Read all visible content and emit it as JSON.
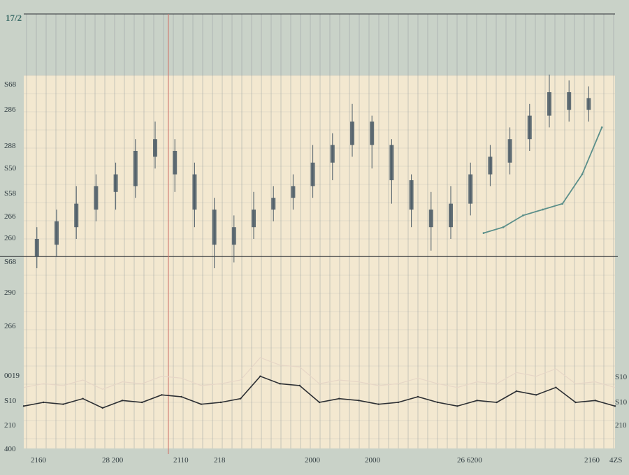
{
  "header": {
    "corner_label": "17/2"
  },
  "palette": {
    "background": "#c9d2c8",
    "panel": "#f3e8d0",
    "grid": "#8f999b",
    "candle": "#4a5a66",
    "price_line": "#2c2f33",
    "accent_line": "#5b8f8a",
    "marker_line": "#d0776f",
    "faint_line": "#e6d6c6"
  },
  "chart_data": {
    "type": "line",
    "title": "",
    "xlabel": "",
    "ylabel": "",
    "grid": true,
    "legend": "none",
    "ylim": [
      0,
      100
    ],
    "left_ticks": [
      "S68",
      "286",
      "288",
      "S50",
      "S58",
      "266",
      "260",
      "S68",
      "290",
      "266",
      "",
      "0019",
      "S10",
      "210",
      "400"
    ],
    "right_ticks": [
      "S10",
      "S10",
      "210"
    ],
    "x_ticks": [
      "2160",
      "28 200",
      "2110",
      "218",
      "2000",
      "2000",
      "26 6200",
      "2160",
      "4ZS"
    ],
    "candles": [
      {
        "x": 2,
        "o": 34,
        "c": 40,
        "h": 44,
        "l": 30
      },
      {
        "x": 5,
        "o": 38,
        "c": 46,
        "h": 50,
        "l": 34
      },
      {
        "x": 8,
        "o": 44,
        "c": 52,
        "h": 58,
        "l": 40
      },
      {
        "x": 11,
        "o": 50,
        "c": 58,
        "h": 62,
        "l": 46
      },
      {
        "x": 14,
        "o": 56,
        "c": 62,
        "h": 66,
        "l": 50
      },
      {
        "x": 17,
        "o": 58,
        "c": 70,
        "h": 74,
        "l": 54
      },
      {
        "x": 20,
        "o": 68,
        "c": 74,
        "h": 80,
        "l": 64
      },
      {
        "x": 23,
        "o": 70,
        "c": 62,
        "h": 74,
        "l": 56
      },
      {
        "x": 26,
        "o": 62,
        "c": 50,
        "h": 66,
        "l": 44
      },
      {
        "x": 29,
        "o": 50,
        "c": 38,
        "h": 54,
        "l": 30
      },
      {
        "x": 32,
        "o": 38,
        "c": 44,
        "h": 48,
        "l": 32
      },
      {
        "x": 35,
        "o": 44,
        "c": 50,
        "h": 56,
        "l": 40
      },
      {
        "x": 38,
        "o": 50,
        "c": 54,
        "h": 58,
        "l": 46
      },
      {
        "x": 41,
        "o": 54,
        "c": 58,
        "h": 62,
        "l": 50
      },
      {
        "x": 44,
        "o": 58,
        "c": 66,
        "h": 72,
        "l": 54
      },
      {
        "x": 47,
        "o": 66,
        "c": 72,
        "h": 76,
        "l": 60
      },
      {
        "x": 50,
        "o": 72,
        "c": 80,
        "h": 86,
        "l": 68
      },
      {
        "x": 53,
        "o": 80,
        "c": 72,
        "h": 82,
        "l": 64
      },
      {
        "x": 56,
        "o": 72,
        "c": 60,
        "h": 74,
        "l": 52
      },
      {
        "x": 59,
        "o": 60,
        "c": 50,
        "h": 62,
        "l": 44
      },
      {
        "x": 62,
        "o": 50,
        "c": 44,
        "h": 56,
        "l": 36
      },
      {
        "x": 65,
        "o": 44,
        "c": 52,
        "h": 58,
        "l": 40
      },
      {
        "x": 68,
        "o": 52,
        "c": 62,
        "h": 66,
        "l": 48
      },
      {
        "x": 71,
        "o": 62,
        "c": 68,
        "h": 72,
        "l": 58
      },
      {
        "x": 74,
        "o": 66,
        "c": 74,
        "h": 78,
        "l": 62
      },
      {
        "x": 77,
        "o": 74,
        "c": 82,
        "h": 86,
        "l": 70
      },
      {
        "x": 80,
        "o": 82,
        "c": 90,
        "h": 96,
        "l": 78
      },
      {
        "x": 83,
        "o": 90,
        "c": 84,
        "h": 94,
        "l": 80
      },
      {
        "x": 86,
        "o": 84,
        "c": 88,
        "h": 92,
        "l": 80
      }
    ],
    "lower_series": {
      "x": [
        0,
        3,
        6,
        9,
        12,
        15,
        18,
        21,
        24,
        27,
        30,
        33,
        36,
        39,
        42,
        45,
        48,
        51,
        54,
        57,
        60,
        63,
        66,
        69,
        72,
        75,
        78,
        81,
        84,
        87,
        90
      ],
      "values": [
        22,
        24,
        23,
        26,
        21,
        25,
        24,
        28,
        27,
        23,
        24,
        26,
        38,
        34,
        33,
        24,
        26,
        25,
        23,
        24,
        27,
        24,
        22,
        25,
        24,
        30,
        28,
        32,
        24,
        25,
        22
      ]
    },
    "overlay_series": {
      "x": [
        70,
        73,
        76,
        79,
        82,
        85,
        88
      ],
      "values": [
        42,
        44,
        48,
        50,
        52,
        62,
        78
      ]
    },
    "reference_value": 34,
    "marker_x": 22
  }
}
